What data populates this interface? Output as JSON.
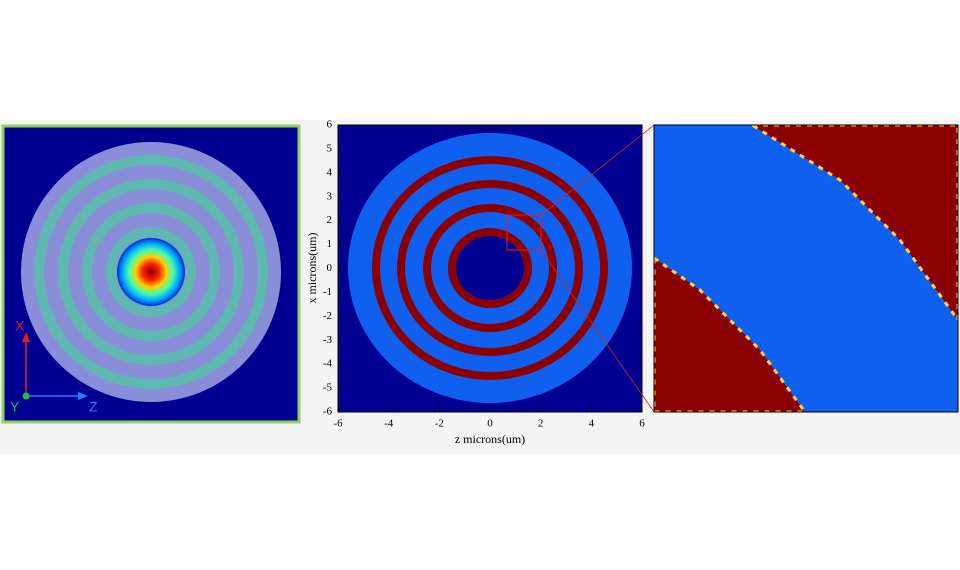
{
  "left_panel": {
    "axis_x": "X",
    "axis_y": "Y",
    "axis_z": "Z"
  },
  "plot": {
    "xlabel": "z microns(um)",
    "ylabel": "x microns(um)",
    "xlim": [
      -6,
      6
    ],
    "ylim": [
      -6,
      6
    ],
    "xticks": [
      -6,
      -4,
      -2,
      0,
      2,
      4,
      6
    ],
    "yticks": [
      -6,
      -5,
      -4,
      -3,
      -2,
      -1,
      0,
      1,
      2,
      3,
      4,
      5,
      6
    ]
  }
}
